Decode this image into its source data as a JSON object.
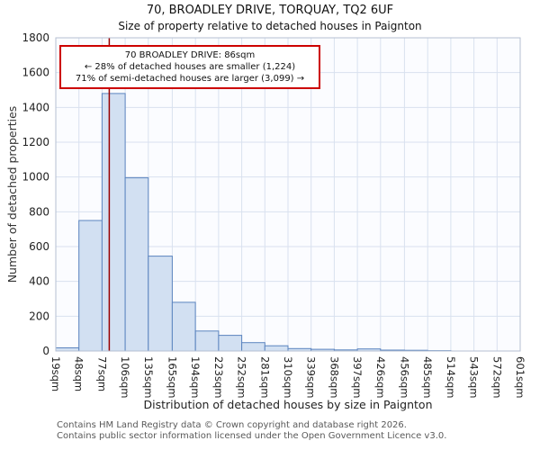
{
  "title": "70, BROADLEY DRIVE, TORQUAY, TQ2 6UF",
  "subtitle": "Size of property relative to detached houses in Paignton",
  "annotation": {
    "line1": "70 BROADLEY DRIVE: 86sqm",
    "line2": "← 28% of detached houses are smaller (1,224)",
    "line3": "71% of semi-detached houses are larger (3,099) →"
  },
  "footer": {
    "line1": "Contains HM Land Registry data © Crown copyright and database right 2026.",
    "line2": "Contains public sector information licensed under the Open Government Licence v3.0."
  },
  "chart_data": {
    "type": "bar",
    "title": "70, BROADLEY DRIVE, TORQUAY, TQ2 6UF",
    "subtitle": "Size of property relative to detached houses in Paignton",
    "xlabel": "Distribution of detached houses by size in Paignton",
    "ylabel": "Number of detached properties",
    "x_unit": "sqm",
    "bin_edges": [
      19,
      48,
      77,
      106,
      135,
      165,
      194,
      223,
      252,
      281,
      310,
      339,
      368,
      397,
      426,
      456,
      485,
      514,
      543,
      572,
      601
    ],
    "values": [
      18,
      750,
      1480,
      995,
      545,
      280,
      115,
      90,
      48,
      30,
      14,
      10,
      6,
      12,
      5,
      4,
      2,
      0,
      0,
      0
    ],
    "ylim": [
      0,
      1800
    ],
    "ytick_step": 200,
    "grid": true,
    "legend": "none",
    "marker_value": 86,
    "marker_label": "70 BROADLEY DRIVE: 86sqm",
    "colors": {
      "plot_bg": "#fbfcff",
      "grid": "#d9e1ef",
      "frame": "#b4bfd2",
      "bar_fill": "#d2e0f2",
      "bar_border": "#5b84bf",
      "marker": "#990000",
      "annotation_border": "#cc0000"
    }
  }
}
